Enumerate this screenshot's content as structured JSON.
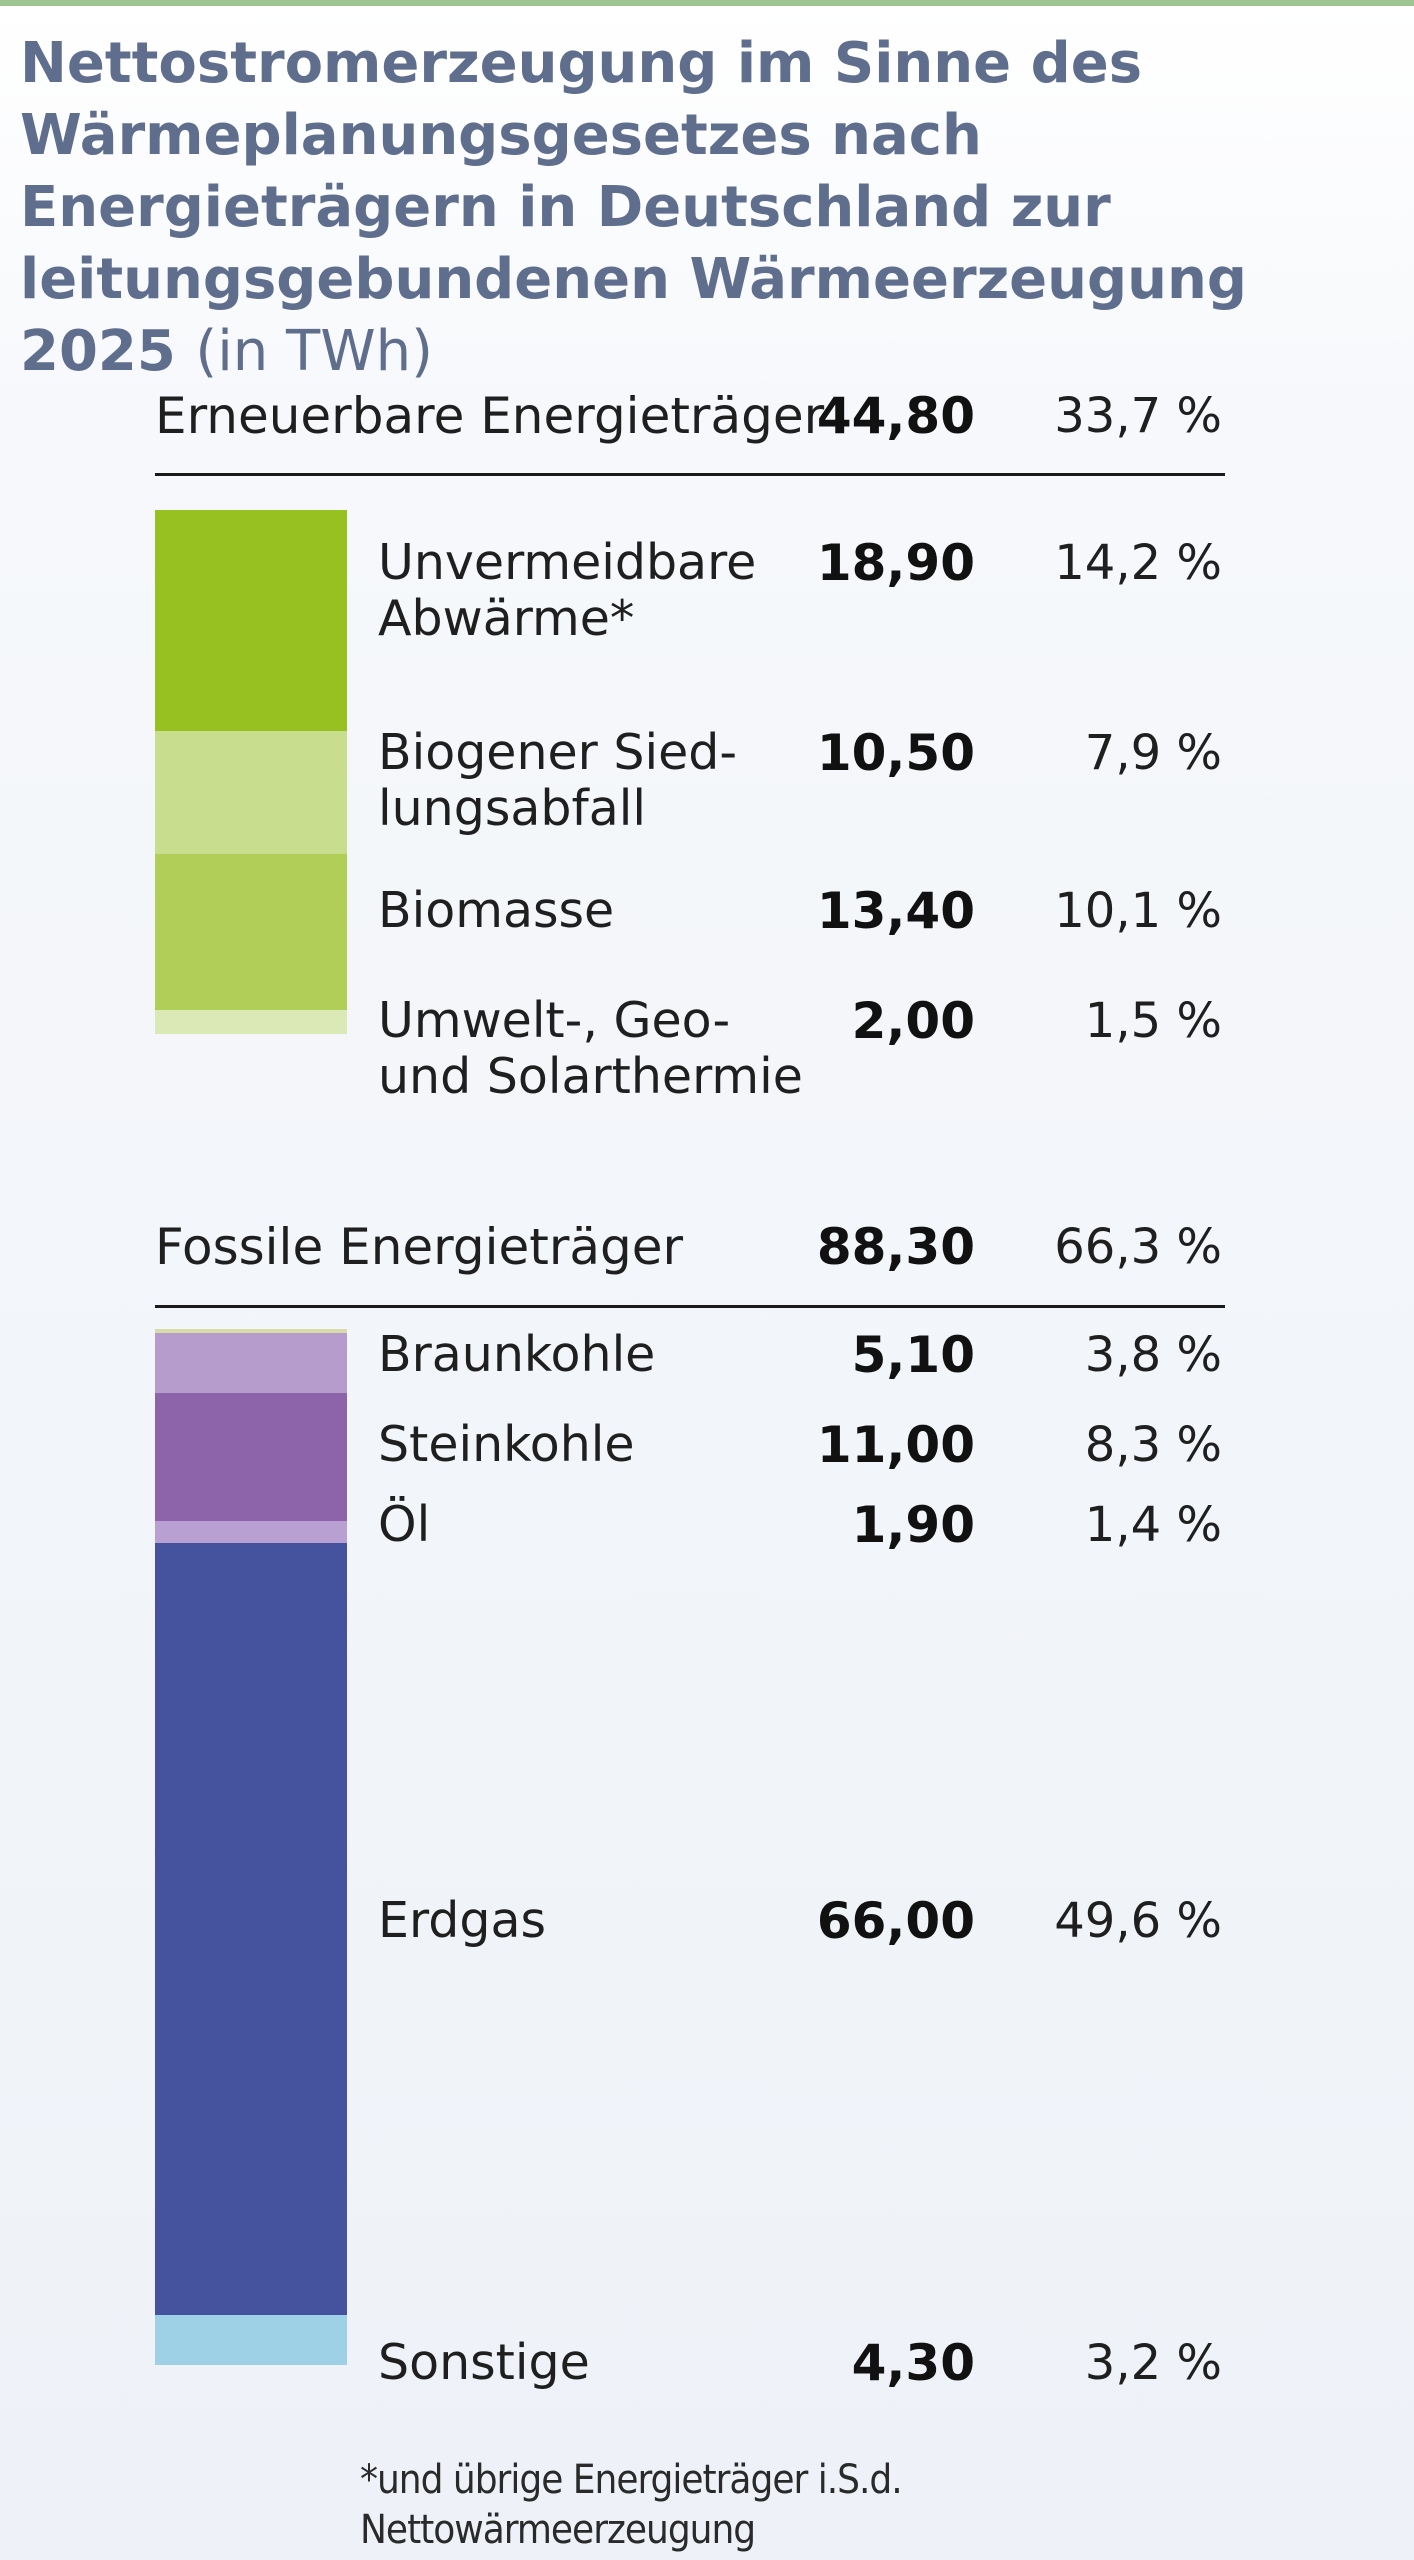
{
  "title_main": "Nettostromerzeugung im Sinne des Wärmeplanungsgesetzes nach Energieträgern in Deutschland zur leitungsgebundenen Wärmeerzeugung 2025",
  "title_unit": "(in TWh)",
  "footnote": "*und übrige Energieträger i.S.d. Nettowärmeerzeugung",
  "chart_data": {
    "type": "bar",
    "orientation": "vertical-stacked",
    "title": "Nettostromerzeugung im Sinne des Wärmeplanungsgesetzes nach Energieträgern in Deutschland zur leitungsgebundenen Wärmeerzeugung 2025 (in TWh)",
    "unit": "TWh",
    "groups": [
      {
        "label": "Erneuerbare Energieträger",
        "value": 44.8,
        "value_label": "44,80",
        "share_label": "33,7 %",
        "items": [
          {
            "label": "Unvermeidbare Abwärme*",
            "value": 18.9,
            "value_label": "18,90",
            "share": 14.2,
            "share_label": "14,2 %",
            "color": "#97c021"
          },
          {
            "label": "Biogener Siedlungsabfall",
            "value": 10.5,
            "value_label": "10,50",
            "share": 7.9,
            "share_label": "7,9 %",
            "color": "#c8dd8e"
          },
          {
            "label": "Biomasse",
            "value": 13.4,
            "value_label": "13,40",
            "share": 10.1,
            "share_label": "10,1 %",
            "color": "#b1cf58"
          },
          {
            "label": "Umwelt-, Geo- und Solarthermie",
            "value": 2.0,
            "value_label": "2,00",
            "share": 1.5,
            "share_label": "1,5 %",
            "color": "#dbe9b6"
          }
        ]
      },
      {
        "label": "Fossile Energieträger",
        "value": 88.3,
        "value_label": "88,30",
        "share_label": "66,3 %",
        "items": [
          {
            "label": "Braunkohle",
            "value": 5.1,
            "value_label": "5,10",
            "share": 3.8,
            "share_label": "3,8 %",
            "color": "#b59ccd"
          },
          {
            "label": "Steinkohle",
            "value": 11.0,
            "value_label": "11,00",
            "share": 8.3,
            "share_label": "8,3 %",
            "color": "#8d63aa"
          },
          {
            "label": "Öl",
            "value": 1.9,
            "value_label": "1,90",
            "share": 1.4,
            "share_label": "1,4 %",
            "color": "#b9a0d2"
          },
          {
            "label": "Erdgas",
            "value": 66.0,
            "value_label": "66,00",
            "share": 49.6,
            "share_label": "49,6 %",
            "color": "#45539f"
          },
          {
            "label": "Sonstige",
            "value": 4.3,
            "value_label": "4,30",
            "share": 3.2,
            "share_label": "3,2 %",
            "color": "#9fd1e6"
          }
        ]
      }
    ]
  }
}
